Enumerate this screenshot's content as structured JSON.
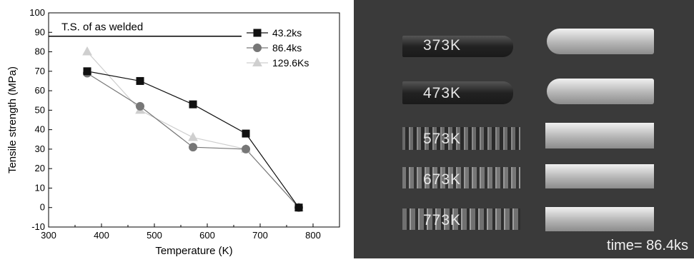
{
  "chart_data": {
    "type": "line",
    "xlabel": "Temperature (K)",
    "ylabel": "Tensile strength (MPa)",
    "xlim": [
      300,
      850
    ],
    "ylim": [
      -10,
      100
    ],
    "xticks": [
      "300",
      "400",
      "500",
      "600",
      "700",
      "800"
    ],
    "yticks": [
      "-10",
      "0",
      "10",
      "20",
      "30",
      "40",
      "50",
      "60",
      "70",
      "80",
      "90",
      "100"
    ],
    "x": [
      373,
      473,
      573,
      673,
      773
    ],
    "series": [
      {
        "name": "43.2ks",
        "marker": "square",
        "color": "#111111",
        "values": [
          70,
          65,
          53,
          38,
          0
        ]
      },
      {
        "name": "86.4ks",
        "marker": "circle",
        "color": "#777777",
        "values": [
          69,
          52,
          31,
          30,
          0
        ]
      },
      {
        "name": "129.6Ks",
        "marker": "triangle",
        "color": "#cfcfcf",
        "values": [
          80,
          50,
          36,
          30,
          0
        ]
      }
    ],
    "reference_line": {
      "value": 88,
      "label": "T.S. of as welded"
    },
    "legend": "top-right",
    "grid": false
  },
  "photo": {
    "specimen_labels": [
      "373K",
      "473K",
      "573K",
      "673K",
      "773K"
    ],
    "time_label": "time= 86.4ks"
  }
}
